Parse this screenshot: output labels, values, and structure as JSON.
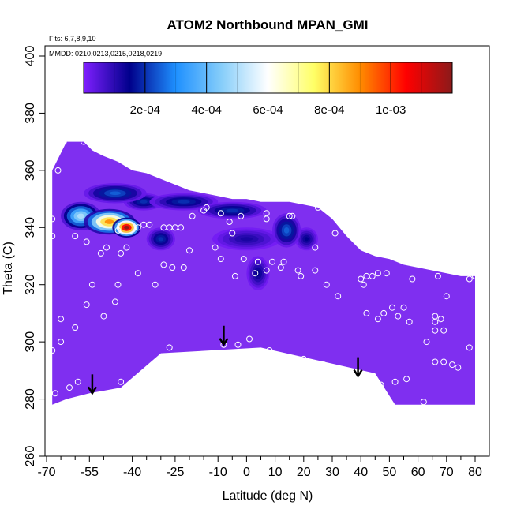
{
  "chart_data": {
    "type": "heatmap",
    "title": "ATOM2 Northbound MPAN_GMI",
    "flights_note": "Flts: 6,7,8,9,10",
    "dates_note": "MMDD: 0210,0213,0215,0218,0219",
    "xlabel": "Latitude (deg N)",
    "ylabel": "Theta (C)",
    "xlim": [
      -70,
      82
    ],
    "ylim": [
      260,
      405
    ],
    "x_ticks": [
      -70,
      -55,
      -40,
      -25,
      -10,
      0,
      10,
      20,
      30,
      40,
      50,
      60,
      70,
      80
    ],
    "x_minor_ticks": [
      -65,
      -60,
      -50,
      -45,
      -35,
      -30,
      -20,
      -15,
      -5,
      5,
      15,
      25,
      35,
      45,
      55,
      65,
      75
    ],
    "y_ticks": [
      260,
      280,
      300,
      320,
      340,
      360,
      380,
      400
    ],
    "colorbar": {
      "min": 0,
      "max": 0.0012,
      "tick_values": [
        0.0002,
        0.0004,
        0.0006,
        0.0008,
        0.001
      ],
      "tick_labels": [
        "2e-04",
        "4e-04",
        "6e-04",
        "8e-04",
        "1e-03"
      ],
      "stops": [
        "#7f1fff",
        "#00008b",
        "#1e90ff",
        "#87cefa",
        "#ffffff",
        "#ffff66",
        "#ff8c00",
        "#ff0000",
        "#8b1a1a"
      ]
    },
    "background_color": "#7f2ff0",
    "region_top": [
      [
        -68,
        360
      ],
      [
        -63,
        370
      ],
      [
        -57,
        370
      ],
      [
        -54,
        367
      ],
      [
        -50,
        365
      ],
      [
        -45,
        363
      ],
      [
        -40,
        360
      ],
      [
        -35,
        359
      ],
      [
        -30,
        357
      ],
      [
        -25,
        355
      ],
      [
        -20,
        353
      ],
      [
        -15,
        352
      ],
      [
        -10,
        351
      ],
      [
        -5,
        350
      ],
      [
        0,
        350
      ],
      [
        5,
        349
      ],
      [
        10,
        349
      ],
      [
        15,
        349
      ],
      [
        20,
        348
      ],
      [
        25,
        347
      ],
      [
        30,
        343
      ],
      [
        35,
        337
      ],
      [
        40,
        332
      ],
      [
        45,
        330
      ],
      [
        50,
        329
      ],
      [
        55,
        327
      ],
      [
        60,
        326
      ],
      [
        65,
        325
      ],
      [
        70,
        324
      ],
      [
        75,
        323
      ],
      [
        80,
        323
      ]
    ],
    "region_bottom": [
      [
        80,
        278
      ],
      [
        52,
        278
      ],
      [
        45,
        289
      ],
      [
        5,
        298
      ],
      [
        -30,
        296
      ],
      [
        -44,
        284
      ],
      [
        -55,
        282
      ],
      [
        -63,
        280
      ],
      [
        -68,
        278
      ]
    ],
    "enhancements": [
      {
        "lat": -42,
        "theta": 340,
        "value": 0.0012,
        "rlat": 5,
        "rtheta": 3.5
      },
      {
        "lat": -48,
        "theta": 342,
        "value": 0.0009,
        "rlat": 9,
        "rtheta": 4.5
      },
      {
        "lat": -58,
        "theta": 344,
        "value": 0.0005,
        "rlat": 7,
        "rtheta": 5
      },
      {
        "lat": -46,
        "theta": 352,
        "value": 0.00025,
        "rlat": 11,
        "rtheta": 3.5
      },
      {
        "lat": -36,
        "theta": 349,
        "value": 0.0002,
        "rlat": 7,
        "rtheta": 3
      },
      {
        "lat": -22,
        "theta": 349,
        "value": 0.0002,
        "rlat": 12,
        "rtheta": 3
      },
      {
        "lat": -5,
        "theta": 346,
        "value": 0.0002,
        "rlat": 12,
        "rtheta": 3
      },
      {
        "lat": 14,
        "theta": 339,
        "value": 0.00025,
        "rlat": 5,
        "rtheta": 6
      },
      {
        "lat": 4,
        "theta": 324,
        "value": 0.00015,
        "rlat": 4,
        "rtheta": 6
      },
      {
        "lat": 21,
        "theta": 336,
        "value": 0.00015,
        "rlat": 4,
        "rtheta": 4
      },
      {
        "lat": -30,
        "theta": 336,
        "value": 0.0002,
        "rlat": 5,
        "rtheta": 4
      },
      {
        "lat": 0,
        "theta": 336,
        "value": 0.00012,
        "rlat": 12,
        "rtheta": 4
      }
    ],
    "sample_points": [
      [
        -64,
        370
      ],
      [
        -57,
        370
      ],
      [
        -66,
        360
      ],
      [
        -68,
        343
      ],
      [
        -68,
        337
      ],
      [
        -60,
        337
      ],
      [
        -56,
        335
      ],
      [
        -51,
        331
      ],
      [
        -49,
        333
      ],
      [
        -45,
        339
      ],
      [
        -44,
        331
      ],
      [
        -42,
        333
      ],
      [
        -38,
        340
      ],
      [
        -36,
        341
      ],
      [
        -34,
        341
      ],
      [
        -29,
        340
      ],
      [
        -27,
        340
      ],
      [
        -25,
        340
      ],
      [
        -23,
        340
      ],
      [
        -19,
        344
      ],
      [
        -15,
        346
      ],
      [
        -14,
        347
      ],
      [
        -9,
        345
      ],
      [
        -2,
        344
      ],
      [
        7,
        345
      ],
      [
        15,
        344
      ],
      [
        16,
        344
      ],
      [
        25,
        347
      ],
      [
        7,
        343
      ],
      [
        -5,
        338
      ],
      [
        -11,
        333
      ],
      [
        31,
        338
      ],
      [
        -6,
        342
      ],
      [
        -29,
        327
      ],
      [
        -26,
        326
      ],
      [
        -20,
        332
      ],
      [
        -22,
        326
      ],
      [
        -9,
        329
      ],
      [
        -4,
        323
      ],
      [
        -1,
        329
      ],
      [
        3,
        324
      ],
      [
        4,
        328
      ],
      [
        9,
        328
      ],
      [
        7,
        325
      ],
      [
        12,
        326
      ],
      [
        13,
        328
      ],
      [
        19,
        323
      ],
      [
        24,
        333
      ],
      [
        28,
        320
      ],
      [
        32,
        316
      ],
      [
        40,
        322
      ],
      [
        41,
        320
      ],
      [
        42,
        323
      ],
      [
        44,
        323
      ],
      [
        46,
        324
      ],
      [
        49,
        324
      ],
      [
        58,
        322
      ],
      [
        63,
        332
      ],
      [
        67,
        323
      ],
      [
        70,
        316
      ],
      [
        78,
        322
      ],
      [
        80,
        323
      ],
      [
        24,
        325
      ],
      [
        18,
        325
      ],
      [
        -68,
        297
      ],
      [
        -65,
        300
      ],
      [
        -60,
        305
      ],
      [
        -56,
        313
      ],
      [
        -65,
        308
      ],
      [
        -46,
        314
      ],
      [
        -54,
        320
      ],
      [
        -45,
        320
      ],
      [
        -32,
        320
      ],
      [
        -27,
        298
      ],
      [
        -8,
        299
      ],
      [
        -3,
        299
      ],
      [
        1,
        301
      ],
      [
        8,
        297
      ],
      [
        -3,
        296
      ],
      [
        13,
        294
      ],
      [
        20,
        294
      ],
      [
        27,
        292
      ],
      [
        35,
        290
      ],
      [
        40,
        289
      ],
      [
        47,
        285
      ],
      [
        52,
        286
      ],
      [
        56,
        287
      ],
      [
        62,
        279
      ],
      [
        66,
        304
      ],
      [
        66,
        307
      ],
      [
        68,
        308
      ],
      [
        69,
        304
      ],
      [
        66,
        293
      ],
      [
        72,
        292
      ],
      [
        74,
        291
      ],
      [
        78,
        298
      ],
      [
        66,
        309
      ],
      [
        63,
        300
      ],
      [
        69,
        293
      ],
      [
        55,
        312
      ],
      [
        53,
        309
      ],
      [
        57,
        307
      ],
      [
        48,
        310
      ],
      [
        51,
        312
      ],
      [
        46,
        308
      ],
      [
        42,
        310
      ],
      [
        -44,
        286
      ],
      [
        -59,
        286
      ],
      [
        -62,
        284
      ],
      [
        -67,
        282
      ],
      [
        -38,
        324
      ],
      [
        -50,
        309
      ]
    ],
    "arrows": [
      {
        "lat": -54,
        "theta": 282
      },
      {
        "lat": -8,
        "theta": 299
      },
      {
        "lat": 39,
        "theta": 288
      }
    ]
  }
}
